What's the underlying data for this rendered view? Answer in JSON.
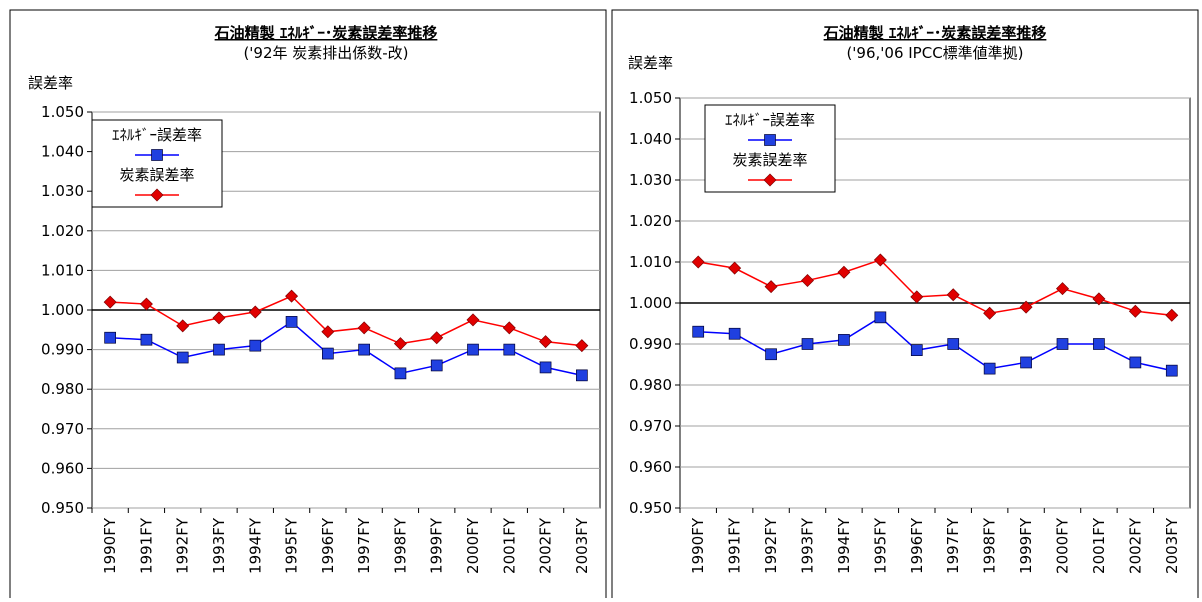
{
  "chart_data": [
    {
      "type": "line",
      "title": "石油精製 ｴﾈﾙｷﾞｰ･炭素誤差率推移",
      "subtitle": "('92年 炭素排出係数-改)",
      "y_label": "誤差率",
      "categories": [
        "1990FY",
        "1991FY",
        "1992FY",
        "1993FY",
        "1994FY",
        "1995FY",
        "1996FY",
        "1997FY",
        "1998FY",
        "1999FY",
        "2000FY",
        "2001FY",
        "2002FY",
        "2003FY"
      ],
      "series": [
        {
          "name": "ｴﾈﾙｷﾞｰ誤差率",
          "color": "#0000ff",
          "marker": "square",
          "marker_color": "#2040e0",
          "values": [
            0.993,
            0.9925,
            0.988,
            0.99,
            0.991,
            0.997,
            0.989,
            0.99,
            0.984,
            0.986,
            0.99,
            0.99,
            0.9855,
            0.9835
          ]
        },
        {
          "name": "炭素誤差率",
          "color": "#ff0000",
          "marker": "diamond",
          "marker_color": "#e00000",
          "values": [
            1.002,
            1.0015,
            0.996,
            0.998,
            0.9995,
            1.0035,
            0.9945,
            0.9955,
            0.9915,
            0.993,
            0.9975,
            0.9955,
            0.992,
            0.991
          ]
        }
      ],
      "ylim": [
        0.95,
        1.05
      ],
      "yticks": [
        {
          "value": 0.95,
          "label": "0.950"
        },
        {
          "value": 0.96,
          "label": "0.960"
        },
        {
          "value": 0.97,
          "label": "0.970"
        },
        {
          "value": 0.98,
          "label": "0.980"
        },
        {
          "value": 0.99,
          "label": "0.990"
        },
        {
          "value": 1.0,
          "label": "1.000"
        },
        {
          "value": 1.01,
          "label": "1.010"
        },
        {
          "value": 1.02,
          "label": "1.020"
        },
        {
          "value": 1.03,
          "label": "1.030"
        },
        {
          "value": 1.04,
          "label": "1.040"
        },
        {
          "value": 1.05,
          "label": "1.050"
        }
      ],
      "reference_line": 1.0,
      "grid": true,
      "legend": "top-left"
    },
    {
      "type": "line",
      "title": "石油精製 ｴﾈﾙｷﾞｰ･炭素誤差率推移",
      "subtitle": "('96,'06 IPCC標準値準拠)",
      "y_label": "誤差率",
      "categories": [
        "1990FY",
        "1991FY",
        "1992FY",
        "1993FY",
        "1994FY",
        "1995FY",
        "1996FY",
        "1997FY",
        "1998FY",
        "1999FY",
        "2000FY",
        "2001FY",
        "2002FY",
        "2003FY"
      ],
      "series": [
        {
          "name": "ｴﾈﾙｷﾞｰ誤差率",
          "color": "#0000ff",
          "marker": "square",
          "marker_color": "#2040e0",
          "values": [
            0.993,
            0.9925,
            0.9875,
            0.99,
            0.991,
            0.9965,
            0.9885,
            0.99,
            0.984,
            0.9855,
            0.99,
            0.99,
            0.9855,
            0.9835
          ]
        },
        {
          "name": "炭素誤差率",
          "color": "#ff0000",
          "marker": "diamond",
          "marker_color": "#e00000",
          "values": [
            1.01,
            1.0085,
            1.004,
            1.0055,
            1.0075,
            1.0105,
            1.0015,
            1.002,
            0.9975,
            0.999,
            1.0035,
            1.001,
            0.998,
            0.997
          ]
        }
      ],
      "ylim": [
        0.95,
        1.05
      ],
      "yticks": [
        {
          "value": 0.95,
          "label": "0.950"
        },
        {
          "value": 0.96,
          "label": "0.960"
        },
        {
          "value": 0.97,
          "label": "0.970"
        },
        {
          "value": 0.98,
          "label": "0.980"
        },
        {
          "value": 0.99,
          "label": "0.990"
        },
        {
          "value": 1.0,
          "label": "1.000"
        },
        {
          "value": 1.01,
          "label": "1.010"
        },
        {
          "value": 1.02,
          "label": "1.020"
        },
        {
          "value": 1.03,
          "label": "1.030"
        },
        {
          "value": 1.04,
          "label": "1.040"
        },
        {
          "value": 1.05,
          "label": "1.050"
        }
      ],
      "reference_line": 1.0,
      "grid": true,
      "legend": "top-left"
    }
  ]
}
